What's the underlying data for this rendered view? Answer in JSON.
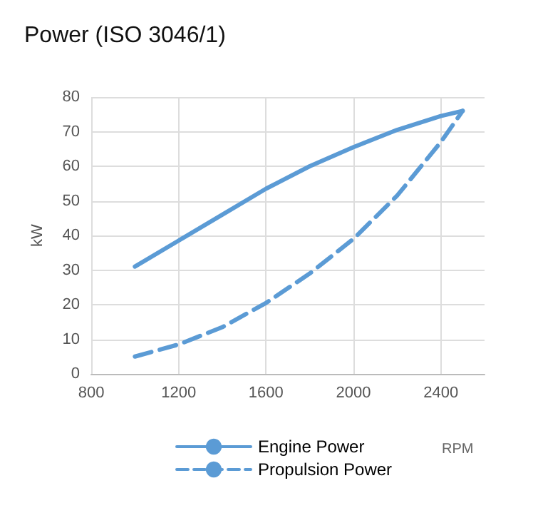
{
  "chart_data": {
    "type": "line",
    "title": "Power (ISO 3046/1)",
    "xlabel": "RPM",
    "ylabel": "kW",
    "x": [
      1000,
      1200,
      1400,
      1600,
      1800,
      2000,
      2200,
      2400,
      2500
    ],
    "series": [
      {
        "name": "Engine Power",
        "color": "#5b9bd5",
        "line_style": "solid",
        "values": [
          31,
          38.5,
          46,
          53.5,
          60,
          65.5,
          70.5,
          74.5,
          76
        ]
      },
      {
        "name": "Propulsion Power",
        "color": "#5b9bd5",
        "line_style": "dashed",
        "values": [
          5,
          8.5,
          13.5,
          20.5,
          29,
          39,
          51.5,
          67,
          76
        ]
      }
    ],
    "xlim": [
      800,
      2600
    ],
    "xticks": [
      800,
      1200,
      1600,
      2000,
      2400
    ],
    "ylim": [
      0,
      80
    ],
    "yticks": [
      0,
      10,
      20,
      30,
      40,
      50,
      60,
      70,
      80
    ],
    "grid": true,
    "legend": "bottom",
    "marker": "none"
  }
}
